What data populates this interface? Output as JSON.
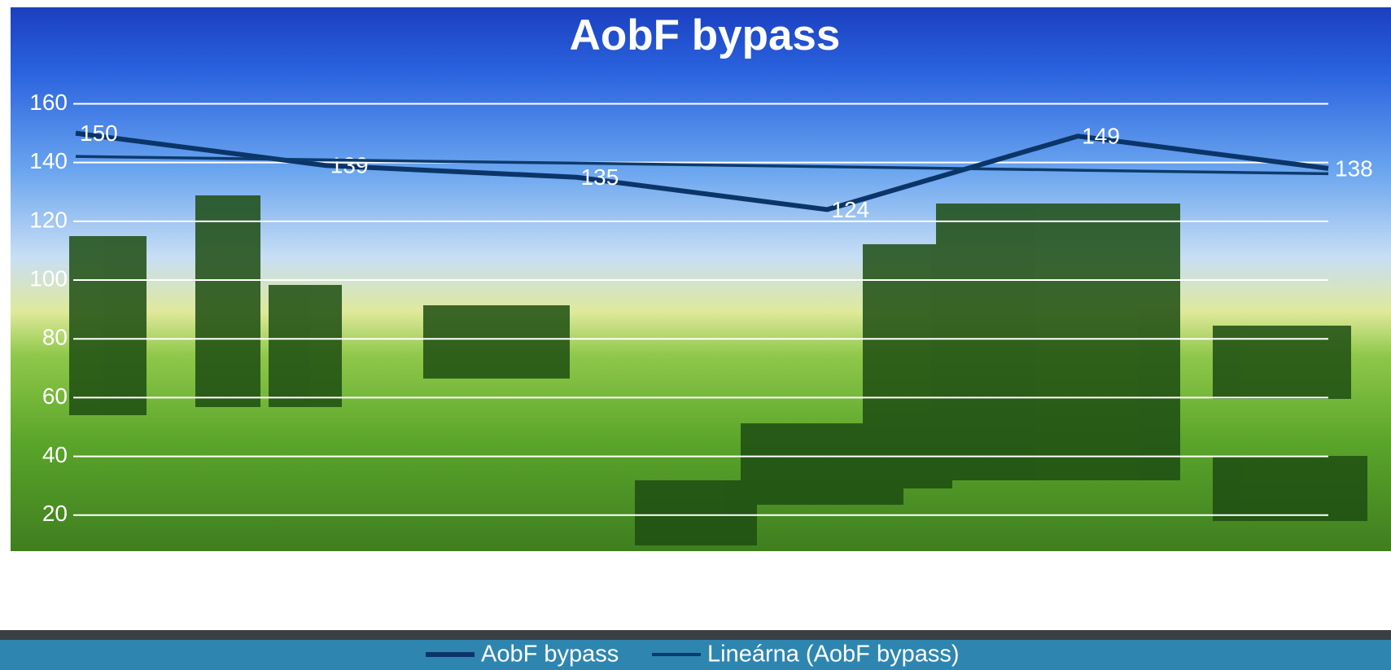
{
  "chart_data": {
    "type": "line",
    "title": "AobF bypass",
    "categories": [
      null,
      null,
      null,
      null,
      null,
      null
    ],
    "series": [
      {
        "name": "AobF bypass",
        "color": "#0b3568",
        "values": [
          150,
          139,
          135,
          124,
          149,
          138
        ],
        "data_labels": true
      },
      {
        "name": "Lineárna (AobF bypass)",
        "color": "#0d3a6c",
        "values": [
          142.1,
          140.9,
          139.8,
          138.6,
          137.4,
          136.2
        ],
        "data_labels": false
      }
    ],
    "ylim": [
      0,
      170
    ],
    "yticks": [
      20,
      40,
      60,
      80,
      100,
      120,
      140,
      160
    ],
    "grid": true,
    "legend": "bottom"
  }
}
